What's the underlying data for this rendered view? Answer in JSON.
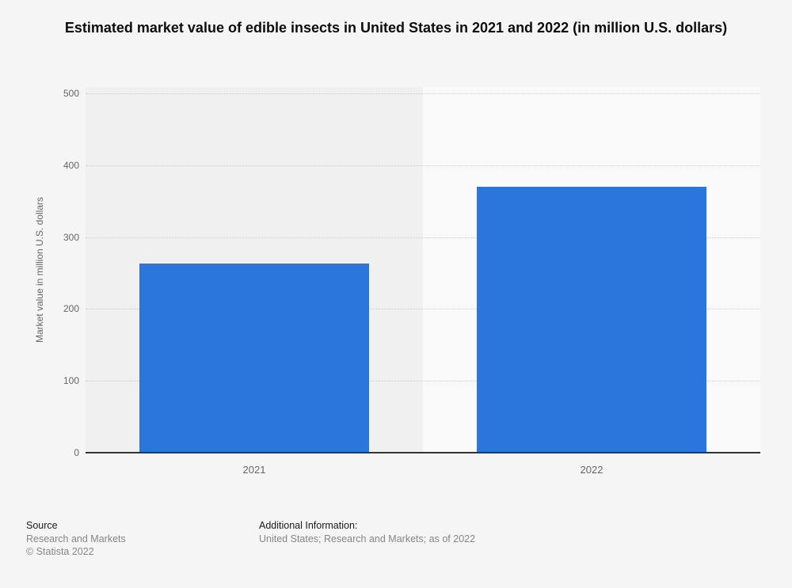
{
  "title": "Estimated market value of edible insects in United States in 2021 and 2022 (in million U.S. dollars)",
  "chart_data": {
    "type": "bar",
    "title": "Estimated market value of edible insects in United States in 2021 and 2022 (in million U.S. dollars)",
    "categories": [
      "2021",
      "2022"
    ],
    "values": [
      263,
      370
    ],
    "xlabel": "",
    "ylabel": "Market value in million U.S. dollars",
    "ylim": [
      0,
      500
    ],
    "yticks": [
      0,
      100,
      200,
      300,
      400,
      500
    ],
    "grid": "horizontal-dotted",
    "legend": "none",
    "bar_color": "#2a76dd",
    "band_colors": [
      "#f0f0f0",
      "#fafafa"
    ],
    "gridline_color": "#cccccc",
    "axis_line_color": "#333333"
  },
  "footer": {
    "source_label": "Source",
    "source_name": "Research and Markets",
    "copyright": "© Statista 2022",
    "additional_label": "Additional Information:",
    "additional_text": "United States; Research and Markets; as of 2022"
  }
}
